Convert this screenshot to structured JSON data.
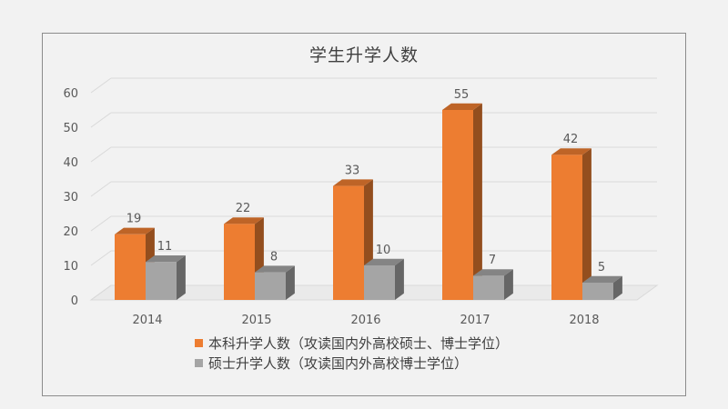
{
  "chart_data": {
    "type": "bar",
    "title": "学生升学人数",
    "categories": [
      "2014",
      "2015",
      "2016",
      "2017",
      "2018"
    ],
    "series": [
      {
        "name": "本科升学人数（攻读国内外高校硕士、博士学位）",
        "values": [
          19,
          22,
          33,
          55,
          42
        ],
        "color": "#ed7d31"
      },
      {
        "name": "硕士升学人数（攻读国内外高校博士学位）",
        "values": [
          11,
          8,
          10,
          7,
          5
        ],
        "color": "#a5a5a5"
      }
    ],
    "ylim": [
      0,
      60
    ],
    "yticks": [
      "0",
      "10",
      "20",
      "30",
      "40",
      "50",
      "60"
    ],
    "grid": true,
    "legend_position": "bottom",
    "style": "3d-column"
  }
}
